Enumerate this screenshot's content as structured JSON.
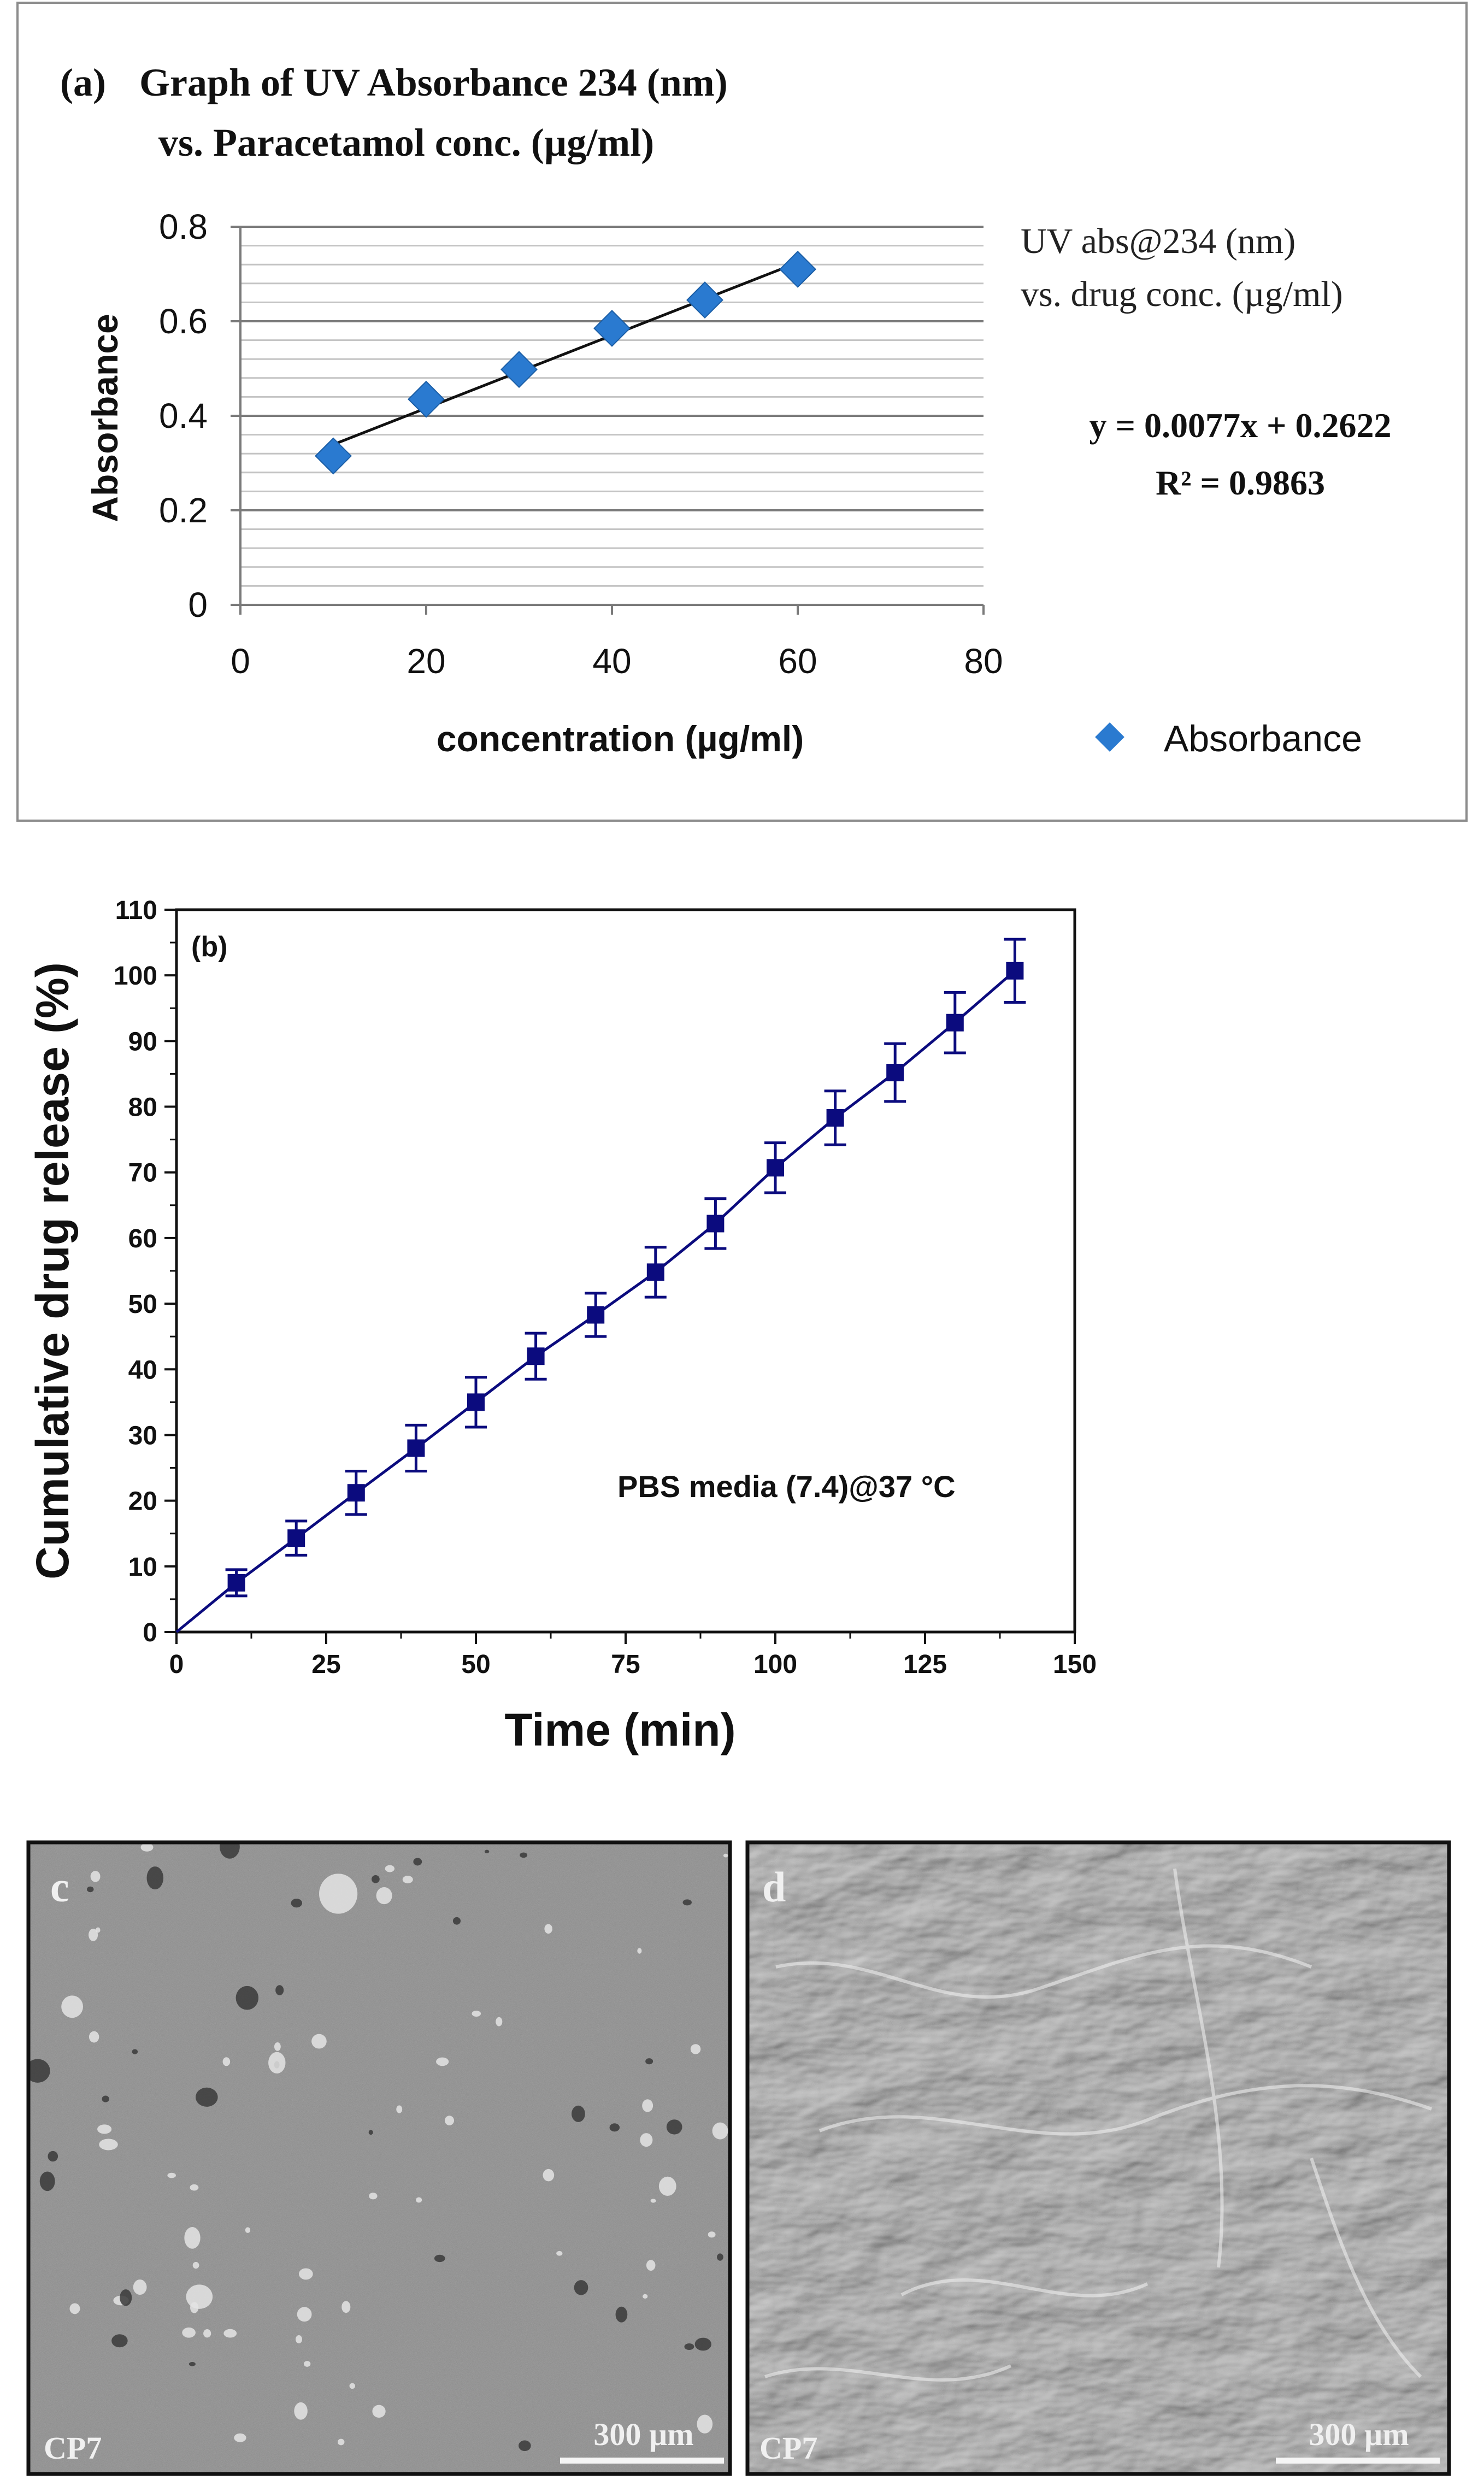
{
  "chart_data": [
    {
      "type": "scatter",
      "panel_label": "(a)",
      "title_line1": "Graph of UV Absorbance 234 (nm)",
      "title_line2": "vs. Paracetamol conc. (µg/ml)",
      "xlabel": "concentration (µg/ml)",
      "ylabel": "Absorbance",
      "x": [
        10,
        20,
        30,
        40,
        50,
        60
      ],
      "y": [
        0.315,
        0.435,
        0.498,
        0.585,
        0.645,
        0.71
      ],
      "xlim": [
        0,
        80
      ],
      "ylim": [
        0,
        0.8
      ],
      "xticks": [
        "0",
        "20",
        "40",
        "60",
        "80"
      ],
      "yticks": [
        "0",
        "0.2",
        "0.4",
        "0.6",
        "0.8"
      ],
      "trendline": {
        "slope": 0.0077,
        "intercept": 0.2622,
        "x_range": [
          10,
          60
        ]
      },
      "annotation_line1": "UV abs@234 (nm)",
      "annotation_line2": "vs. drug conc. (µg/ml)",
      "equation": "y = 0.0077x + 0.2622",
      "r_squared": "R² = 0.9863",
      "legend": "Absorbance",
      "legend_position": "bottom-right",
      "grid": true,
      "marker_color": "#2a7ad0"
    },
    {
      "type": "line",
      "panel_label": "(b)",
      "xlabel": "Time (min)",
      "ylabel": "Cumulative drug release (%)",
      "x": [
        0,
        10,
        20,
        30,
        40,
        50,
        60,
        70,
        80,
        90,
        100,
        110,
        120,
        130,
        140
      ],
      "y": [
        0,
        7.5,
        14.3,
        21.2,
        28.0,
        35.0,
        42.0,
        48.3,
        54.8,
        62.2,
        70.7,
        78.3,
        85.2,
        92.8,
        100.7
      ],
      "error": [
        0,
        2.0,
        2.6,
        3.3,
        3.5,
        3.8,
        3.5,
        3.3,
        3.8,
        3.8,
        3.8,
        4.1,
        4.4,
        4.6,
        4.8
      ],
      "xlim": [
        0,
        150
      ],
      "ylim": [
        0,
        110
      ],
      "xticks": [
        "0",
        "25",
        "50",
        "75",
        "100",
        "125",
        "150"
      ],
      "yticks": [
        "0",
        "10",
        "20",
        "30",
        "40",
        "50",
        "60",
        "70",
        "80",
        "90",
        "100",
        "110"
      ],
      "annotation": "PBS media (7.4)@37 °C",
      "grid": false,
      "color": "#0b0b7e"
    }
  ],
  "micrographs": {
    "c": {
      "label": "c",
      "sample": "CP7",
      "scale_bar": "300 µm"
    },
    "d": {
      "label": "d",
      "sample": "CP7",
      "scale_bar": "300 µm"
    }
  }
}
